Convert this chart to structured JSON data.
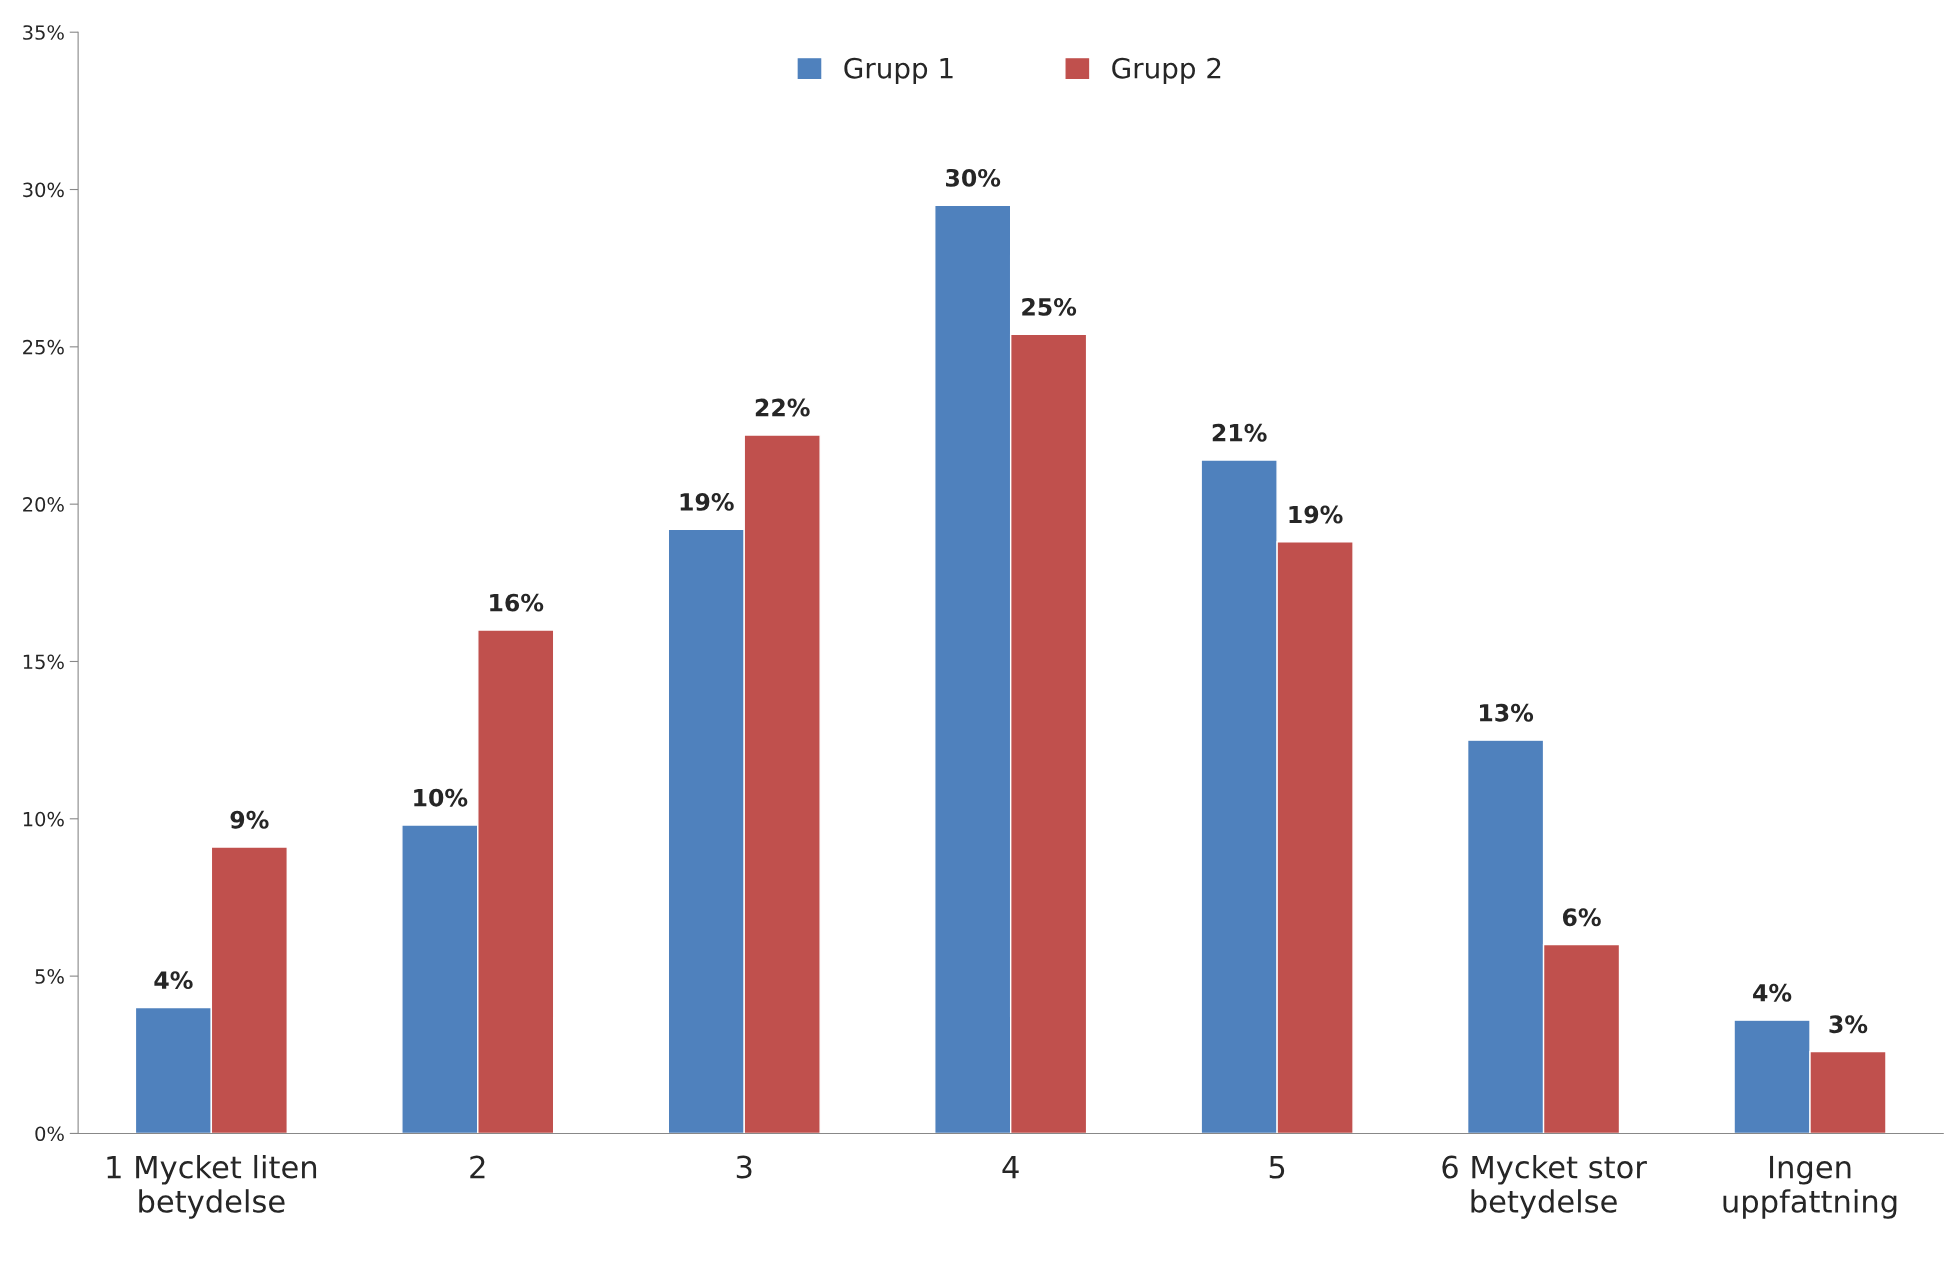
{
  "chart_data": {
    "type": "bar",
    "categories": [
      "1 Mycket liten\nbetydelse",
      "2",
      "3",
      "4",
      "5",
      "6 Mycket stor\nbetydelse",
      "Ingen\nuppfattning"
    ],
    "series": [
      {
        "name": "Grupp 1",
        "color": "#4f81bd",
        "values": [
          4.0,
          9.8,
          19.2,
          29.5,
          21.4,
          12.5,
          3.6
        ],
        "value_labels": [
          "4%",
          "10%",
          "19%",
          "30%",
          "21%",
          "13%",
          "4%"
        ]
      },
      {
        "name": "Grupp 2",
        "color": "#c0504d",
        "values": [
          9.1,
          16.0,
          22.2,
          25.4,
          18.8,
          6.0,
          2.6
        ],
        "value_labels": [
          "9%",
          "16%",
          "22%",
          "25%",
          "19%",
          "6%",
          "3%"
        ]
      }
    ],
    "ylim": [
      0,
      35
    ],
    "yticks": [
      {
        "value": 0,
        "label": "0%"
      },
      {
        "value": 5,
        "label": "5%"
      },
      {
        "value": 10,
        "label": "10%"
      },
      {
        "value": 15,
        "label": "15%"
      },
      {
        "value": 20,
        "label": "20%"
      },
      {
        "value": 25,
        "label": "25%"
      },
      {
        "value": 30,
        "label": "30%"
      },
      {
        "value": 35,
        "label": "35%"
      }
    ],
    "grid": false,
    "legend": "top"
  }
}
